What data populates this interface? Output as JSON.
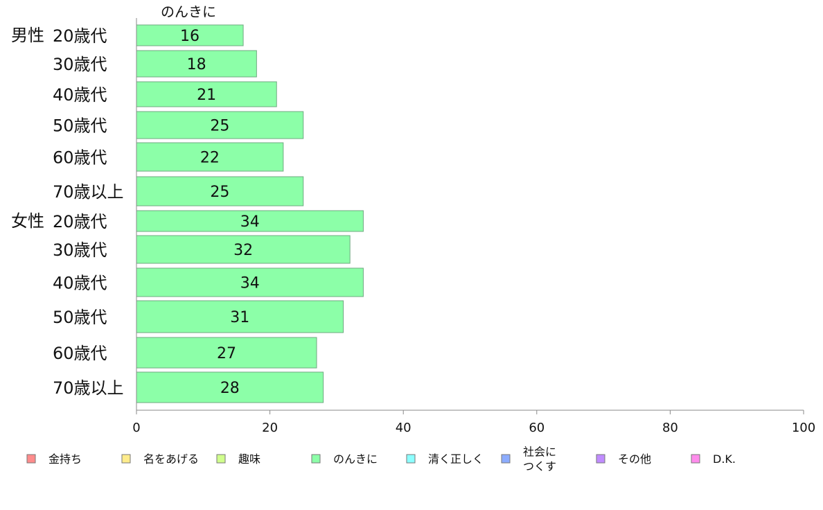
{
  "chart_data": {
    "type": "bar",
    "orientation": "horizontal",
    "series_title": "のんきに",
    "groups": [
      {
        "label": "男性",
        "categories": [
          "20歳代",
          "30歳代",
          "40歳代",
          "50歳代",
          "60歳代",
          "70歳以上"
        ],
        "values": [
          16,
          18,
          21,
          25,
          22,
          25
        ]
      },
      {
        "label": "女性",
        "categories": [
          "20歳代",
          "30歳代",
          "40歳代",
          "50歳代",
          "60歳代",
          "70歳以上"
        ],
        "values": [
          34,
          32,
          34,
          31,
          27,
          28
        ]
      }
    ],
    "series": [
      {
        "name": "のんきに",
        "color": "#8cffa8"
      }
    ],
    "xlim": [
      0,
      100
    ],
    "xticks": [
      "0",
      "20",
      "40",
      "60",
      "80",
      "100"
    ],
    "grid": false,
    "legend_position": "bottom",
    "legend": [
      {
        "label": "金持ち",
        "lines": [
          "金持ち"
        ],
        "color": "#ff8c8c"
      },
      {
        "label": "名をあげる",
        "lines": [
          "名をあげる"
        ],
        "color": "#ffec8c"
      },
      {
        "label": "趣味",
        "lines": [
          "趣味"
        ],
        "color": "#d0ff8c"
      },
      {
        "label": "のんきに",
        "lines": [
          "のんきに"
        ],
        "color": "#8cffa8"
      },
      {
        "label": "清く正しく",
        "lines": [
          "清く正しく"
        ],
        "color": "#8cffff"
      },
      {
        "label": "社会につくす",
        "lines": [
          "社会に",
          "つくす"
        ],
        "color": "#8cacff"
      },
      {
        "label": "その他",
        "lines": [
          "その他"
        ],
        "color": "#c08cff"
      },
      {
        "label": "D.K.",
        "lines": [
          "D.K."
        ],
        "color": "#ff8cec"
      }
    ]
  }
}
